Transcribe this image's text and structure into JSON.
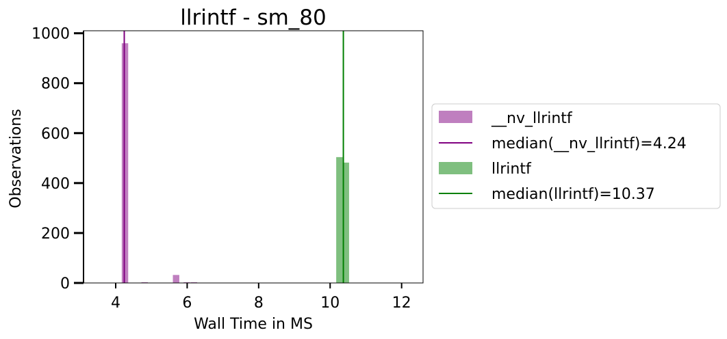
{
  "chart_data": {
    "type": "bar",
    "title": "llrintf - sm_80",
    "xlabel": "Wall Time in MS",
    "ylabel": "Observations",
    "xlim": [
      3.1,
      12.6
    ],
    "ylim": [
      0,
      1010
    ],
    "xticks": [
      4,
      6,
      8,
      10,
      12
    ],
    "yticks": [
      0,
      200,
      400,
      600,
      800,
      1000
    ],
    "grid": false,
    "legend_position": "right outside",
    "series": [
      {
        "name": "__nv_llrintf",
        "color": "#bf7fbf",
        "bins": [
          {
            "x0": 4.17,
            "x1": 4.35,
            "count": 960
          },
          {
            "x0": 4.72,
            "x1": 4.9,
            "count": 3
          },
          {
            "x0": 5.6,
            "x1": 5.78,
            "count": 32
          },
          {
            "x0": 5.9,
            "x1": 6.08,
            "count": 3
          },
          {
            "x0": 6.1,
            "x1": 6.28,
            "count": 3
          }
        ],
        "median": 4.24,
        "median_label": "median(__nv_llrintf)=4.24",
        "median_color": "#800080"
      },
      {
        "name": "llrintf",
        "color": "#7fbf7f",
        "bins": [
          {
            "x0": 10.17,
            "x1": 10.35,
            "count": 504
          },
          {
            "x0": 10.35,
            "x1": 10.53,
            "count": 482
          }
        ],
        "median": 10.37,
        "median_label": "median(llrintf)=10.37",
        "median_color": "#008000"
      }
    ]
  }
}
